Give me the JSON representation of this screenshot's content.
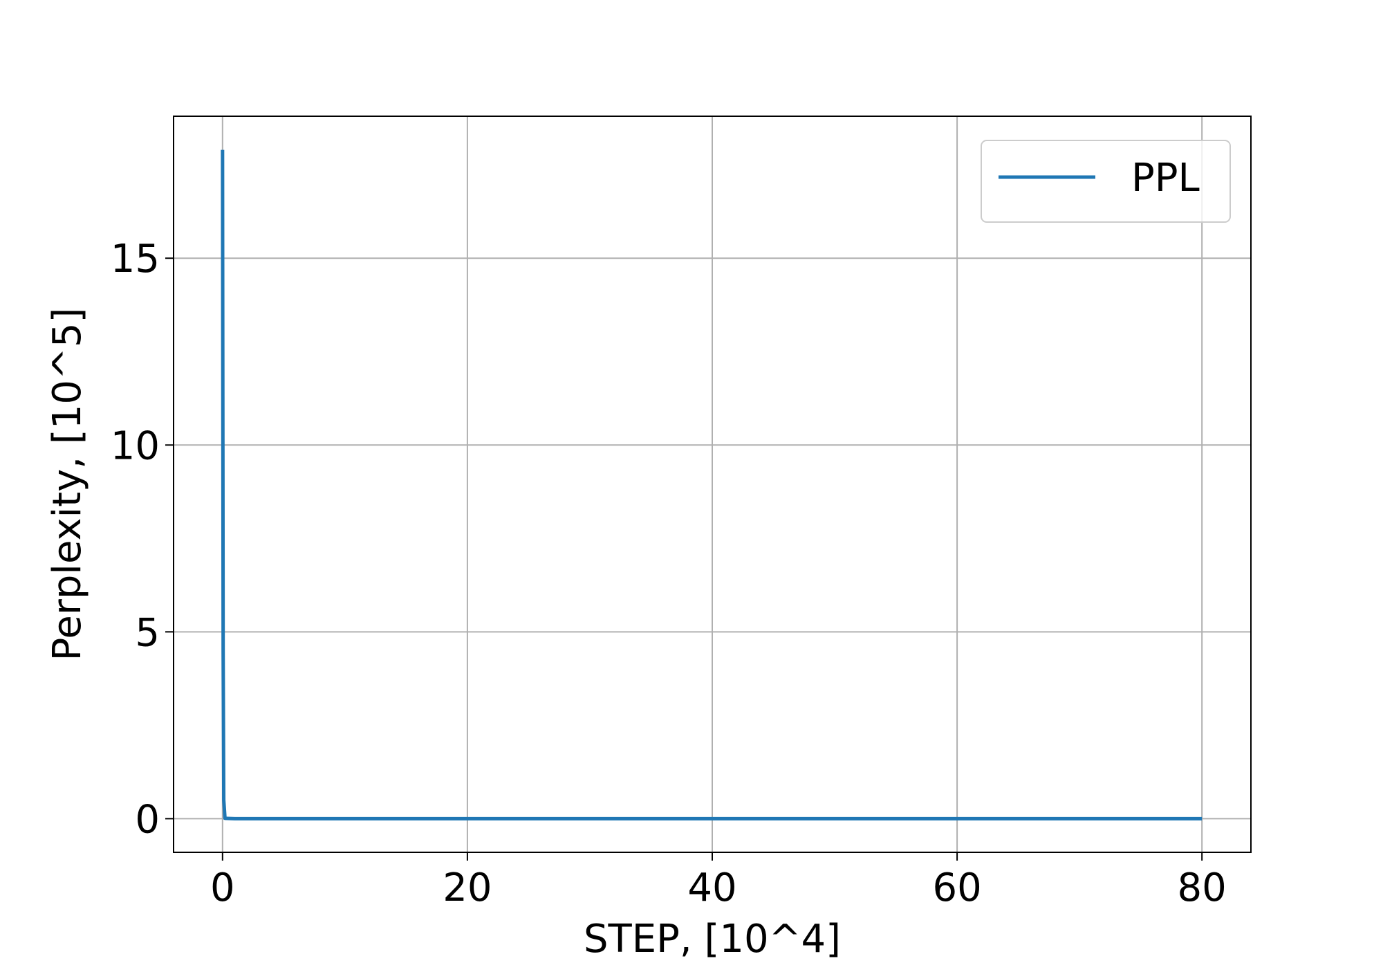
{
  "chart_data": {
    "type": "line",
    "title": "",
    "xlabel": "STEP, [10^4]",
    "ylabel": "Perplexity, [10^5]",
    "xlim": [
      -4,
      84
    ],
    "ylim": [
      -0.9,
      18.8
    ],
    "xticks": [
      0,
      20,
      40,
      60,
      80
    ],
    "yticks": [
      0,
      5,
      10,
      15
    ],
    "xtick_labels": [
      "0",
      "20",
      "40",
      "60",
      "80"
    ],
    "ytick_labels": [
      "0",
      "5",
      "10",
      "15"
    ],
    "grid": true,
    "legend_position": "top-right",
    "series": [
      {
        "name": "PPL",
        "color": "#1f77b4",
        "x": [
          0,
          0.05,
          0.1,
          0.2,
          1,
          5,
          10,
          20,
          40,
          60,
          80
        ],
        "y": [
          17.9,
          4.5,
          0.5,
          0.01,
          0.001,
          0.0005,
          0.0004,
          0.0003,
          0.0003,
          0.0002,
          0.0002
        ]
      }
    ]
  }
}
